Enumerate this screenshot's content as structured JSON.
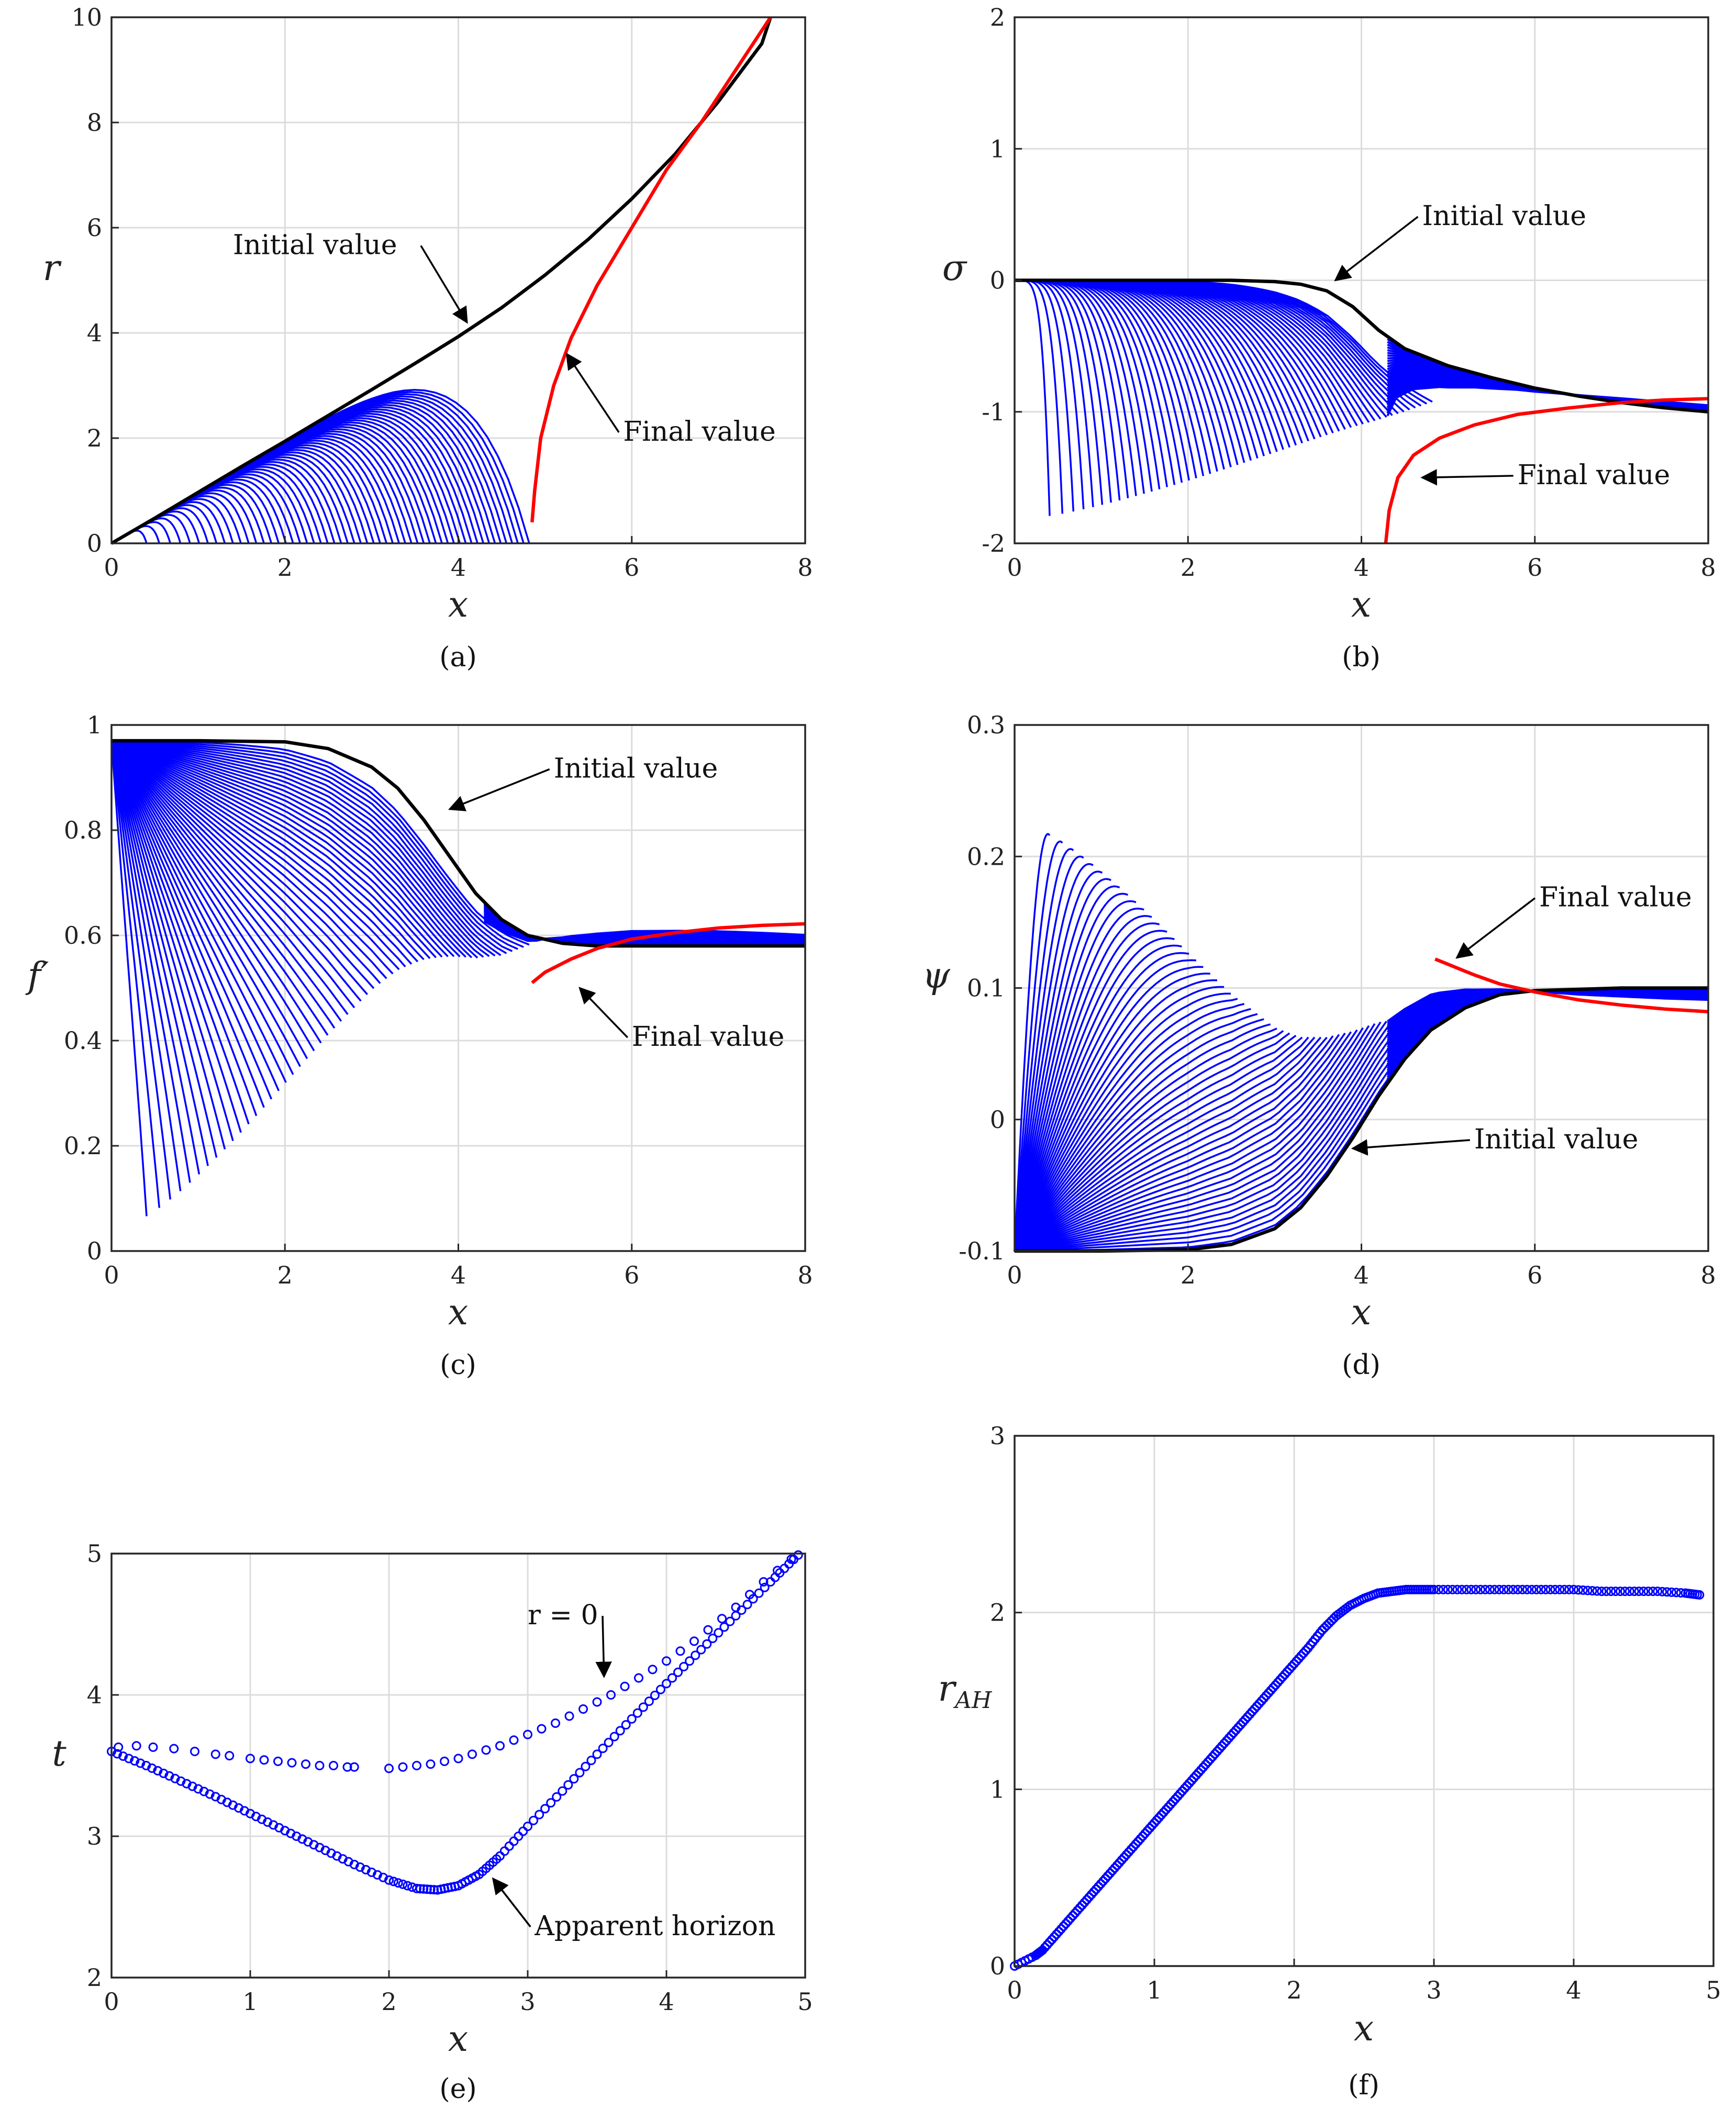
{
  "colors": {
    "family": "#0000ff",
    "initial": "#000000",
    "final": "#ff0000",
    "marker": "#0000ff"
  },
  "chart_data": [
    {
      "id": "a",
      "type": "line",
      "caption": "(a)",
      "xlabel": "x",
      "ylabel": "r",
      "xlim": [
        0,
        8
      ],
      "ylim": [
        0,
        10
      ],
      "xticks": [
        "0",
        "2",
        "4",
        "6",
        "8"
      ],
      "yticks": [
        "0",
        "2",
        "4",
        "6",
        "8",
        "10"
      ],
      "grid": true,
      "series": [
        {
          "role": "initial",
          "x": [
            0,
            0.5,
            1,
            1.5,
            2,
            2.5,
            3,
            3.5,
            4,
            4.5,
            5,
            5.5,
            6,
            6.5,
            7,
            7.5,
            7.6
          ],
          "y": [
            0,
            0.48,
            0.97,
            1.46,
            1.94,
            2.43,
            2.92,
            3.42,
            3.93,
            4.48,
            5.1,
            5.78,
            6.55,
            7.4,
            8.4,
            9.5,
            10.0
          ]
        },
        {
          "role": "final",
          "x": [
            4.85,
            4.88,
            4.95,
            5.1,
            5.3,
            5.6,
            6.0,
            6.4,
            6.8,
            7.2,
            7.6
          ],
          "y": [
            0.4,
            1.0,
            2.0,
            3.0,
            3.9,
            4.9,
            6.0,
            7.1,
            8.0,
            9.0,
            10.0
          ]
        }
      ],
      "annotations": [
        {
          "text": "Initial value",
          "x": 1.4,
          "y": 5.5,
          "ax": 4.1,
          "ay": 4.2
        },
        {
          "text": "Final value",
          "x": 5.9,
          "y": 1.95,
          "ax": 5.25,
          "ay": 3.6
        }
      ]
    },
    {
      "id": "b",
      "type": "line",
      "caption": "(b)",
      "xlabel": "x",
      "ylabel": "σ",
      "xlim": [
        0,
        8
      ],
      "ylim": [
        -2,
        2
      ],
      "xticks": [
        "0",
        "2",
        "4",
        "6",
        "8"
      ],
      "yticks": [
        "-2",
        "-1",
        "0",
        "1",
        "2"
      ],
      "grid": true,
      "series": [
        {
          "role": "initial",
          "x": [
            0,
            1,
            2,
            2.5,
            3,
            3.3,
            3.6,
            3.9,
            4.2,
            4.5,
            5,
            5.5,
            6,
            6.5,
            7,
            7.5,
            8
          ],
          "y": [
            0,
            0,
            0,
            0,
            -0.01,
            -0.03,
            -0.08,
            -0.2,
            -0.38,
            -0.52,
            -0.65,
            -0.74,
            -0.82,
            -0.88,
            -0.93,
            -0.97,
            -1.0
          ]
        },
        {
          "role": "final",
          "x": [
            4.28,
            4.32,
            4.42,
            4.6,
            4.9,
            5.3,
            5.8,
            6.4,
            7.0,
            7.5,
            8.0
          ],
          "y": [
            -2.0,
            -1.75,
            -1.5,
            -1.33,
            -1.2,
            -1.1,
            -1.02,
            -0.97,
            -0.93,
            -0.91,
            -0.9
          ]
        }
      ],
      "annotations": [
        {
          "text": "Initial value",
          "x": 4.7,
          "y": 0.42,
          "ax": 3.7,
          "ay": 0.0
        },
        {
          "text": "Final value",
          "x": 5.8,
          "y": -1.55,
          "ax": 4.7,
          "ay": -1.5
        }
      ]
    },
    {
      "id": "c",
      "type": "line",
      "caption": "(c)",
      "xlabel": "x",
      "ylabel": "f′",
      "xlim": [
        0,
        8
      ],
      "ylim": [
        0,
        1
      ],
      "xticks": [
        "0",
        "2",
        "4",
        "6",
        "8"
      ],
      "yticks": [
        "0",
        "0.2",
        "0.4",
        "0.6",
        "0.8",
        "1"
      ],
      "grid": true,
      "series": [
        {
          "role": "initial",
          "x": [
            0,
            1,
            2,
            2.5,
            3,
            3.3,
            3.6,
            3.9,
            4.2,
            4.5,
            4.8,
            5.2,
            5.6,
            6,
            7,
            8
          ],
          "y": [
            0.97,
            0.97,
            0.968,
            0.955,
            0.92,
            0.88,
            0.82,
            0.75,
            0.68,
            0.63,
            0.6,
            0.585,
            0.58,
            0.58,
            0.58,
            0.58
          ]
        },
        {
          "role": "final",
          "x": [
            4.85,
            5.0,
            5.3,
            5.6,
            6.0,
            6.5,
            7.0,
            7.5,
            8.0
          ],
          "y": [
            0.51,
            0.53,
            0.555,
            0.575,
            0.593,
            0.605,
            0.614,
            0.619,
            0.622
          ]
        }
      ],
      "annotations": [
        {
          "text": "Initial value",
          "x": 5.1,
          "y": 0.9,
          "ax": 3.9,
          "ay": 0.84
        },
        {
          "text": "Final value",
          "x": 6.0,
          "y": 0.39,
          "ax": 5.4,
          "ay": 0.5
        }
      ]
    },
    {
      "id": "d",
      "type": "line",
      "caption": "(d)",
      "xlabel": "x",
      "ylabel": "ψ",
      "xlim": [
        0,
        8
      ],
      "ylim": [
        -0.1,
        0.3
      ],
      "xticks": [
        "0",
        "2",
        "4",
        "6",
        "8"
      ],
      "yticks": [
        "-0.1",
        "0",
        "0.1",
        "0.2",
        "0.3"
      ],
      "grid": true,
      "series": [
        {
          "role": "initial",
          "x": [
            0,
            1,
            2,
            2.5,
            3,
            3.3,
            3.6,
            3.9,
            4.2,
            4.5,
            4.8,
            5.2,
            5.6,
            6,
            7,
            8
          ],
          "y": [
            -0.1,
            -0.1,
            -0.099,
            -0.095,
            -0.083,
            -0.067,
            -0.043,
            -0.014,
            0.018,
            0.046,
            0.068,
            0.085,
            0.095,
            0.098,
            0.1,
            0.1
          ]
        },
        {
          "role": "final",
          "x": [
            4.85,
            5.0,
            5.3,
            5.6,
            6.0,
            6.5,
            7.0,
            7.5,
            8.0
          ],
          "y": [
            0.122,
            0.118,
            0.11,
            0.103,
            0.097,
            0.091,
            0.087,
            0.084,
            0.082
          ]
        }
      ],
      "annotations": [
        {
          "text": "Final value",
          "x": 6.05,
          "y": 0.162,
          "ax": 5.1,
          "ay": 0.123
        },
        {
          "text": "Initial value",
          "x": 5.3,
          "y": -0.022,
          "ax": 3.9,
          "ay": -0.022
        }
      ]
    },
    {
      "id": "e",
      "type": "scatter",
      "caption": "(e)",
      "xlabel": "x",
      "ylabel": "t",
      "xlim": [
        0,
        5
      ],
      "ylim": [
        2,
        5
      ],
      "xticks": [
        "0",
        "1",
        "2",
        "3",
        "4",
        "5"
      ],
      "yticks": [
        "2",
        "3",
        "4",
        "5"
      ],
      "grid": true,
      "series": [
        {
          "role": "r = 0",
          "x": [
            0.05,
            0.18,
            0.3,
            0.45,
            0.6,
            0.75,
            0.85,
            1.0,
            1.1,
            1.2,
            1.3,
            1.4,
            1.5,
            1.6,
            1.7,
            1.75,
            2.0,
            2.1,
            2.2,
            2.3,
            2.4,
            2.5,
            2.6,
            2.7,
            2.8,
            2.9,
            3.0,
            3.1,
            3.2,
            3.3,
            3.4,
            3.5,
            3.6,
            3.7,
            3.8,
            3.9,
            4.0,
            4.1,
            4.2,
            4.3,
            4.4,
            4.5,
            4.6,
            4.7,
            4.8,
            4.9
          ],
          "y": [
            3.63,
            3.64,
            3.63,
            3.62,
            3.6,
            3.58,
            3.57,
            3.55,
            3.54,
            3.53,
            3.52,
            3.51,
            3.5,
            3.5,
            3.49,
            3.49,
            3.48,
            3.49,
            3.5,
            3.51,
            3.53,
            3.55,
            3.58,
            3.61,
            3.64,
            3.68,
            3.72,
            3.76,
            3.8,
            3.85,
            3.9,
            3.95,
            4.0,
            4.06,
            4.12,
            4.18,
            4.24,
            4.31,
            4.38,
            4.46,
            4.54,
            4.62,
            4.71,
            4.8,
            4.88,
            4.96
          ]
        },
        {
          "role": "Apparent horizon",
          "x": [
            0,
            0.25,
            0.5,
            0.75,
            1.0,
            1.25,
            1.5,
            1.75,
            2.0,
            2.2,
            2.35,
            2.5,
            2.65,
            2.8,
            3.0,
            3.25,
            3.5,
            3.75,
            4.0,
            4.25,
            4.5,
            4.75,
            4.95
          ],
          "y": [
            3.6,
            3.5,
            3.39,
            3.28,
            3.16,
            3.04,
            2.92,
            2.8,
            2.69,
            2.63,
            2.62,
            2.65,
            2.73,
            2.86,
            3.07,
            3.32,
            3.58,
            3.83,
            4.08,
            4.32,
            4.56,
            4.8,
            4.99
          ]
        }
      ],
      "annotations": [
        {
          "text": "r = 0",
          "x": 3.0,
          "y": 4.5,
          "ax": 3.55,
          "ay": 4.13
        },
        {
          "text": "Apparent horizon",
          "x": 3.05,
          "y": 2.3,
          "ax": 2.75,
          "ay": 2.7
        }
      ]
    },
    {
      "id": "f",
      "type": "scatter",
      "caption": "(f)",
      "xlabel": "x",
      "ylabel": "r_AH",
      "xlim": [
        0,
        5
      ],
      "ylim": [
        0,
        3
      ],
      "xticks": [
        "0",
        "1",
        "2",
        "3",
        "4",
        "5"
      ],
      "yticks": [
        "0",
        "1",
        "2",
        "3"
      ],
      "grid": true,
      "series": [
        {
          "role": "r_AH",
          "x": [
            0.0,
            0.15,
            0.2,
            0.3,
            0.4,
            0.5,
            0.6,
            0.7,
            0.8,
            0.9,
            1.0,
            1.1,
            1.2,
            1.3,
            1.4,
            1.5,
            1.6,
            1.7,
            1.8,
            1.9,
            2.0,
            2.1,
            2.2,
            2.3,
            2.4,
            2.5,
            2.6,
            2.7,
            2.8,
            2.9,
            3.0,
            3.2,
            3.4,
            3.6,
            3.8,
            4.0,
            4.2,
            4.4,
            4.6,
            4.8,
            4.9
          ],
          "y": [
            0.0,
            0.06,
            0.09,
            0.18,
            0.27,
            0.36,
            0.45,
            0.54,
            0.63,
            0.72,
            0.81,
            0.9,
            0.99,
            1.08,
            1.17,
            1.26,
            1.35,
            1.44,
            1.53,
            1.62,
            1.71,
            1.8,
            1.9,
            1.98,
            2.04,
            2.08,
            2.11,
            2.12,
            2.13,
            2.13,
            2.13,
            2.13,
            2.13,
            2.13,
            2.13,
            2.13,
            2.12,
            2.12,
            2.12,
            2.11,
            2.1
          ]
        }
      ],
      "annotations": []
    }
  ]
}
